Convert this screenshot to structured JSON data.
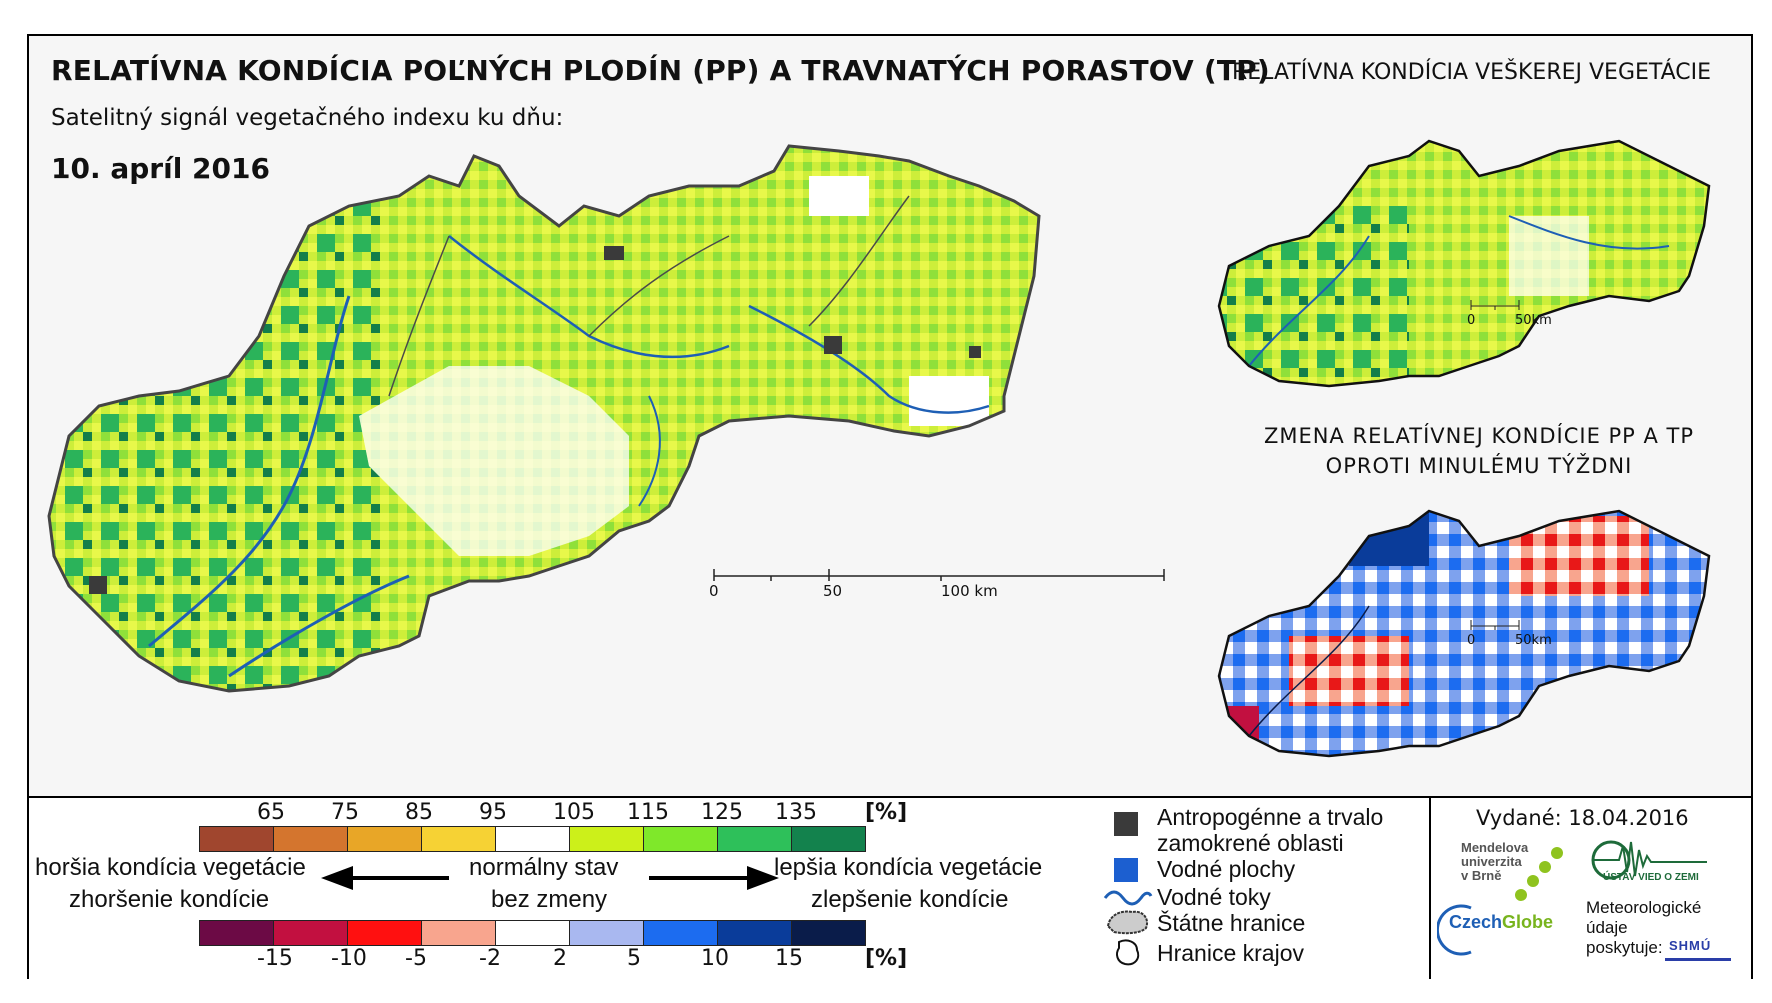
{
  "titles": {
    "main": "RELATÍVNA KONDÍCIA POĽNÝCH PLODÍN (PP) A TRAVNATÝCH PORASTOV (TP)",
    "right": "RELATÍVNA KONDÍCIA VEŠKEREJ VEGETÁCIE",
    "subtitle": "Satelitný signál vegetačného indexu ku dňu:",
    "date": "10. apríl 2016",
    "change_line1": "ZMENA RELATÍVNEJ KONDÍCIE PP A TP",
    "change_line2": "OPROTI MINULÉMU TÝŽDNI"
  },
  "scale_main": {
    "zero": "0",
    "mid": "50",
    "end": "100 km"
  },
  "scale_small_top": {
    "zero": "0",
    "end": "50km"
  },
  "scale_small_bottom": {
    "zero": "0",
    "end": "50km"
  },
  "condition_legend": {
    "ticks": [
      "65",
      "75",
      "85",
      "95",
      "105",
      "115",
      "125",
      "135"
    ],
    "unit": "[%]",
    "colors": [
      "#a0462e",
      "#d4752e",
      "#e8a627",
      "#f6d234",
      "#ffffff",
      "#ccf01a",
      "#7fe82a",
      "#2ec05a",
      "#13824d"
    ]
  },
  "change_legend": {
    "ticks": [
      "-15",
      "-10",
      "-5",
      "-2",
      "2",
      "5",
      "10",
      "15"
    ],
    "unit": "[%]",
    "colors": [
      "#6c0a45",
      "#c21040",
      "#ff1010",
      "#f8a58e",
      "#ffffff",
      "#a9b8f0",
      "#1c6cf0",
      "#0a3c9a",
      "#0a1c4a"
    ]
  },
  "arrows": {
    "left_top": "horšia kondícia vegetácie",
    "left_bottom": "zhoršenie kondície",
    "center_top": "normálny stav",
    "center_bottom": "bez zmeny",
    "right_top": "lepšia kondícia vegetácie",
    "right_bottom": "zlepšenie kondície"
  },
  "map_legend": {
    "anthropogenic_1": "Antropogénne a trvalo",
    "anthropogenic_2": "zamokrené oblasti",
    "water": "Vodné plochy",
    "rivers": "Vodné toky",
    "borders": "Štátne hranice",
    "regions": "Hranice krajov"
  },
  "issued": "Vydané: 18.04.2016",
  "logos": {
    "mendel_1": "Mendelova",
    "mendel_2": "univerzita",
    "mendel_3": "v Brně",
    "czechglobe_a": "Czech",
    "czechglobe_b": "Globe",
    "uvoz": "ÚSTAV VIED O ZEMI",
    "meteo_1": "Meteorologické",
    "meteo_2": "údaje",
    "meteo_3": "poskytuje:",
    "shmu": "SHMÚ"
  }
}
